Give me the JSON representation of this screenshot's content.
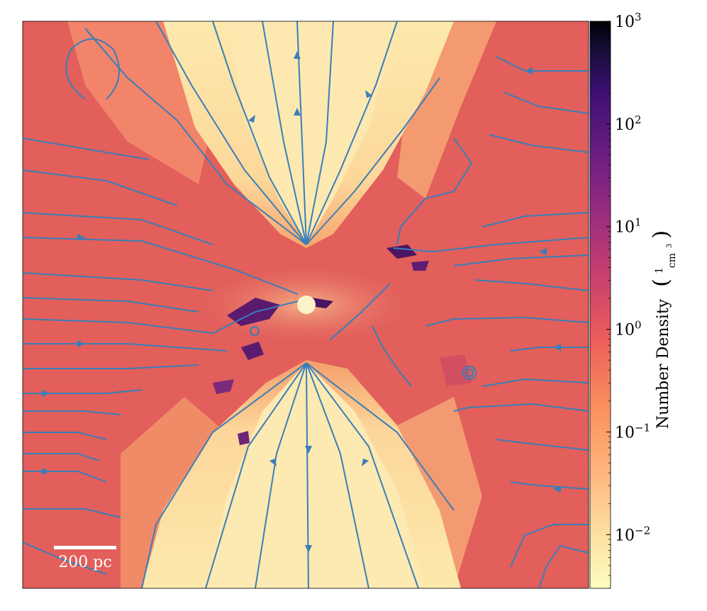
{
  "chart_data": {
    "type": "heatmap",
    "description_kind": "density slice with velocity streamlines",
    "colormap": "magma_r",
    "colorbar": {
      "label": "Number Density",
      "unit_numerator": "1",
      "unit_denominator": "cm",
      "unit_denominator_exp": "3",
      "scale": "log",
      "range": [
        0.003,
        1000
      ],
      "ticks": [
        {
          "base": "10",
          "exp": "3",
          "value": 1000
        },
        {
          "base": "10",
          "exp": "2",
          "value": 100
        },
        {
          "base": "10",
          "exp": "1",
          "value": 10
        },
        {
          "base": "10",
          "exp": "0",
          "value": 1
        },
        {
          "base": "10",
          "exp": "−1",
          "value": 0.1
        },
        {
          "base": "10",
          "exp": "−2",
          "value": 0.01
        }
      ]
    },
    "scale_bar": {
      "label": "200 pc",
      "length_pc": 200
    },
    "streamline_color": "#3a7eb8",
    "features": {
      "central_object_color": "#fdf3c8",
      "outflow_cone_color": "#fde8a8",
      "ambient_color": "#e05c5a",
      "dense_clump_color": "#3b1152"
    }
  }
}
